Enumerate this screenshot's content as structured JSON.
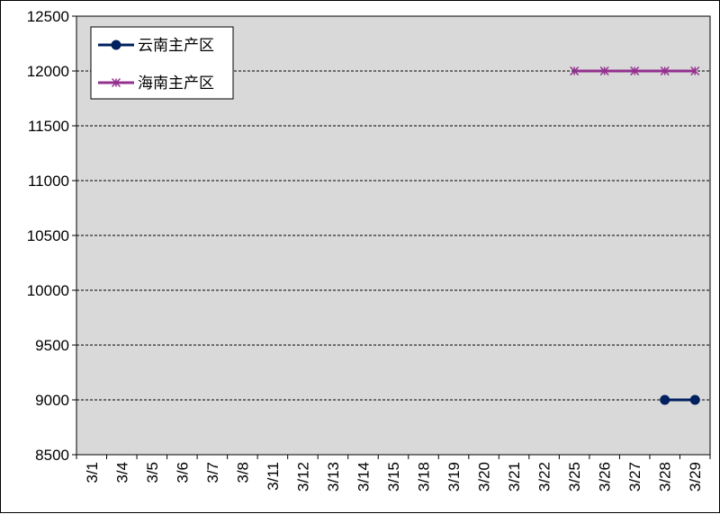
{
  "chart_data": {
    "type": "line",
    "categories": [
      "3/1",
      "3/4",
      "3/5",
      "3/6",
      "3/7",
      "3/8",
      "3/11",
      "3/12",
      "3/13",
      "3/14",
      "3/15",
      "3/18",
      "3/19",
      "3/20",
      "3/21",
      "3/22",
      "3/25",
      "3/26",
      "3/27",
      "3/28",
      "3/29"
    ],
    "ylim": [
      8500,
      12500
    ],
    "yticks": [
      8500,
      9000,
      9500,
      10000,
      10500,
      11000,
      11500,
      12000,
      12500
    ],
    "grid": true,
    "legend_position": "top-left",
    "series": [
      {
        "name": "云南主产区",
        "color": "#002060",
        "marker": "circle",
        "values": [
          null,
          null,
          null,
          null,
          null,
          null,
          null,
          null,
          null,
          null,
          null,
          null,
          null,
          null,
          null,
          null,
          null,
          null,
          null,
          9000,
          9000
        ]
      },
      {
        "name": "海南主产区",
        "color": "#93318F",
        "marker": "star",
        "values": [
          null,
          null,
          null,
          null,
          null,
          null,
          null,
          null,
          null,
          null,
          null,
          null,
          null,
          null,
          null,
          null,
          12000,
          12000,
          12000,
          12000,
          12000
        ]
      }
    ]
  }
}
